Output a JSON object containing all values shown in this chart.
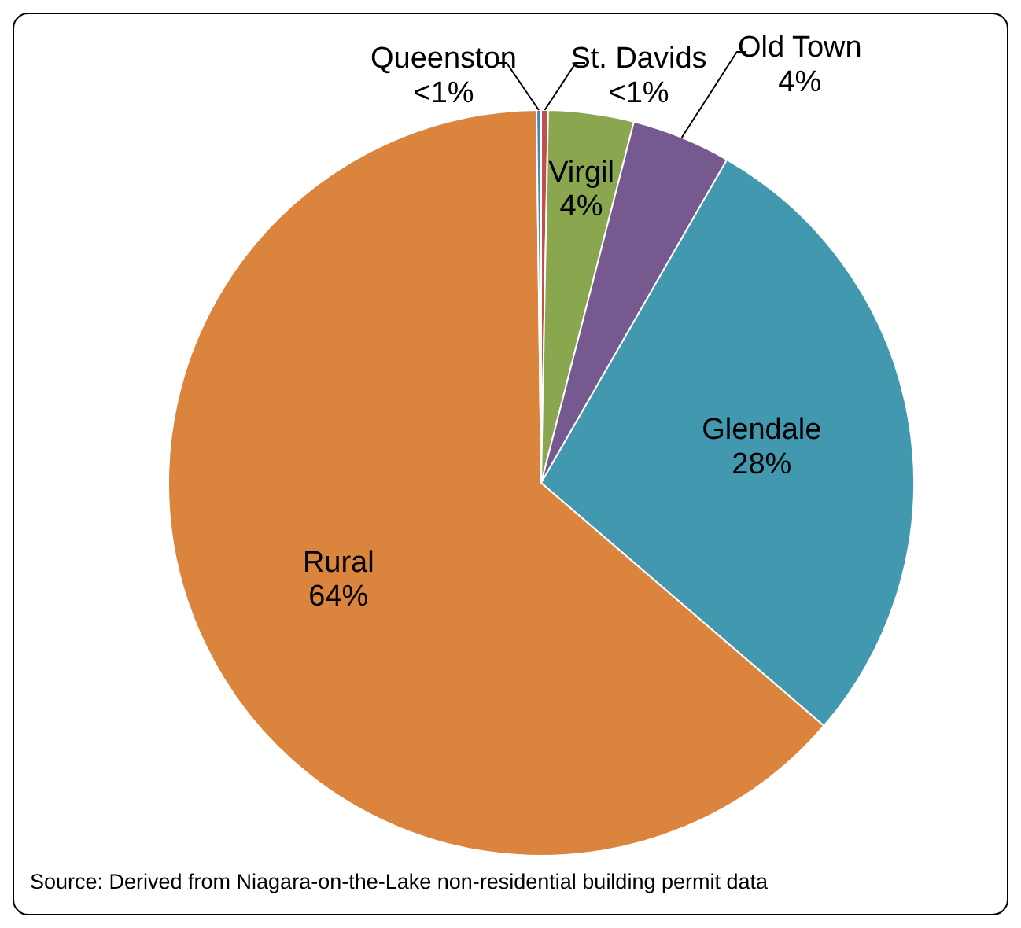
{
  "chart_data": {
    "type": "pie",
    "categories": [
      "St. Davids",
      "Virgil",
      "Old Town",
      "Glendale",
      "Rural",
      "Queenston"
    ],
    "values": [
      0.3,
      3.7,
      4.3,
      28,
      63.5,
      0.2
    ],
    "value_labels": [
      "<1%",
      "4%",
      "4%",
      "28%",
      "64%",
      "<1%"
    ],
    "colors": [
      "#c0504d",
      "#8aa64e",
      "#75598f",
      "#4198af",
      "#db843d",
      "#4f81bd"
    ],
    "annotations": [
      "Source: Derived from Niagara-on-the-Lake non-residential building permit data"
    ]
  }
}
